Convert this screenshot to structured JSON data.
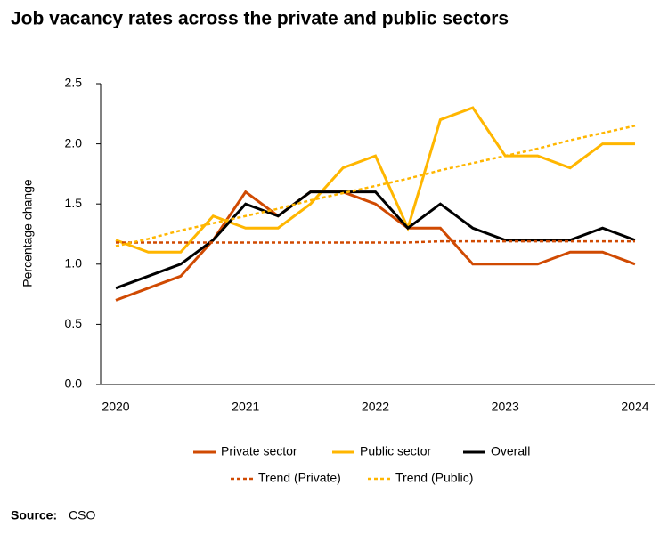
{
  "chart_data": {
    "type": "line",
    "title": "Job vacancy rates across the private and public sectors",
    "y_label": "Percentage change",
    "categories": [
      "2020",
      null,
      null,
      null,
      "2021",
      null,
      null,
      null,
      "2022",
      null,
      null,
      null,
      "2023",
      null,
      null,
      null,
      "2024"
    ],
    "series": [
      {
        "name": "Private sector",
        "color": "#d04a02",
        "dashed": false,
        "values": [
          0.7,
          0.8,
          0.9,
          1.2,
          1.6,
          1.4,
          1.6,
          1.6,
          1.5,
          1.3,
          1.3,
          1.0,
          1.0,
          1.0,
          1.1,
          1.1,
          1.0
        ]
      },
      {
        "name": "Public sector",
        "color": "#ffb600",
        "dashed": false,
        "values": [
          1.2,
          1.1,
          1.1,
          1.4,
          1.3,
          1.3,
          1.5,
          1.8,
          1.9,
          1.3,
          2.2,
          2.3,
          1.9,
          1.9,
          1.8,
          2.0,
          2.0
        ]
      },
      {
        "name": "Overall",
        "color": "#000000",
        "dashed": false,
        "values": [
          0.8,
          0.9,
          1.0,
          1.2,
          1.5,
          1.4,
          1.6,
          1.6,
          1.6,
          1.3,
          1.5,
          1.3,
          1.2,
          1.2,
          1.2,
          1.3,
          1.2
        ]
      },
      {
        "name": "Trend (Private)",
        "color": "#d04a02",
        "dashed": true,
        "values": [
          1.18,
          1.18,
          1.18,
          1.18,
          1.18,
          1.18,
          1.18,
          1.18,
          1.18,
          1.18,
          1.19,
          1.19,
          1.19,
          1.19,
          1.19,
          1.19,
          1.19
        ]
      },
      {
        "name": "Trend (Public)",
        "color": "#ffb600",
        "dashed": true,
        "values": [
          1.15,
          1.21,
          1.28,
          1.34,
          1.4,
          1.46,
          1.53,
          1.59,
          1.65,
          1.71,
          1.78,
          1.84,
          1.9,
          1.96,
          2.03,
          2.09,
          2.15
        ]
      }
    ],
    "ylim": [
      0,
      2.5
    ],
    "yticks": [
      {
        "value": 0,
        "label": "0.0"
      },
      {
        "value": 0.5,
        "label": "0.5"
      },
      {
        "value": 1,
        "label": "1.0"
      },
      {
        "value": 1.5,
        "label": "1.5"
      },
      {
        "value": 2,
        "label": "2.0"
      },
      {
        "value": 2.5,
        "label": "2.5"
      }
    ],
    "grid": false,
    "source_label": "Source:",
    "source": "CSO"
  }
}
